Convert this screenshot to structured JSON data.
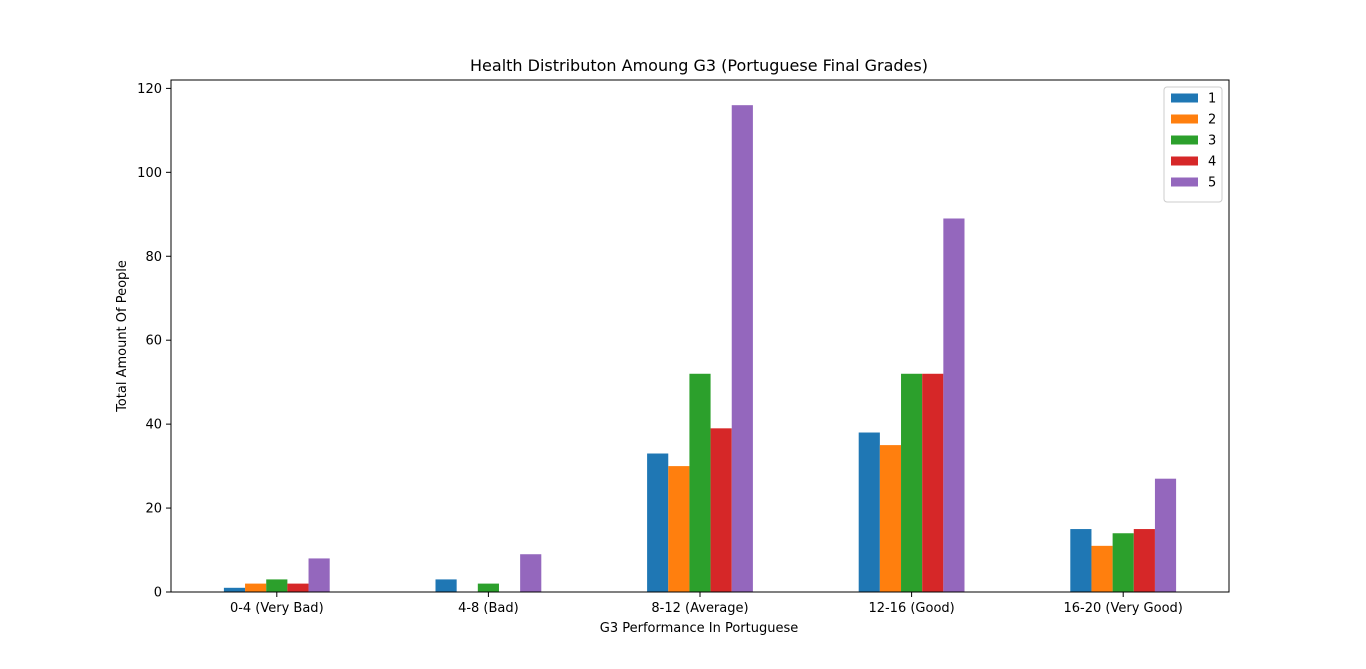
{
  "chart_data": {
    "type": "bar",
    "title": "Health Distributon Amoung G3 (Portuguese Final Grades)",
    "xlabel": "G3 Performance In Portuguese",
    "ylabel": "Total Amount Of People",
    "categories": [
      "0-4 (Very Bad)",
      "4-8 (Bad)",
      "8-12 (Average)",
      "12-16 (Good)",
      "16-20 (Very Good)"
    ],
    "ylim": [
      0,
      122
    ],
    "yticks": [
      0,
      20,
      40,
      60,
      80,
      100,
      120
    ],
    "grid": false,
    "legend_position": "top-right",
    "series": [
      {
        "name": "1",
        "color": "#1f77b4",
        "values": [
          1,
          3,
          33,
          38,
          15
        ]
      },
      {
        "name": "2",
        "color": "#ff7f0e",
        "values": [
          2,
          0,
          30,
          35,
          11
        ]
      },
      {
        "name": "3",
        "color": "#2ca02c",
        "values": [
          3,
          2,
          52,
          52,
          14
        ]
      },
      {
        "name": "4",
        "color": "#d62728",
        "values": [
          2,
          0,
          39,
          52,
          15
        ]
      },
      {
        "name": "5",
        "color": "#9467bd",
        "values": [
          8,
          9,
          116,
          89,
          27
        ]
      }
    ]
  }
}
